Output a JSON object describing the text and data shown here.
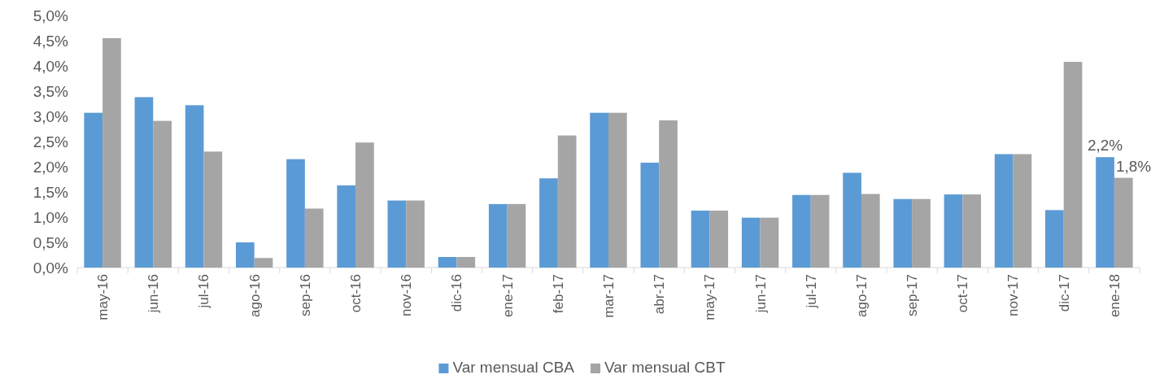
{
  "chart_data": {
    "type": "bar",
    "categories": [
      "may-16",
      "jun-16",
      "jul-16",
      "ago-16",
      "sep-16",
      "oct-16",
      "nov-16",
      "dic-16",
      "ene-17",
      "feb-17",
      "mar-17",
      "abr-17",
      "may-17",
      "jun-17",
      "jul-17",
      "ago-17",
      "sep-17",
      "oct-17",
      "nov-17",
      "dic-17",
      "ene-18"
    ],
    "series": [
      {
        "name": "Var mensual CBA",
        "color": "#5b9bd5",
        "values": [
          3.07,
          3.38,
          3.22,
          0.5,
          2.15,
          1.63,
          1.33,
          0.21,
          1.26,
          1.77,
          3.07,
          2.08,
          1.13,
          0.99,
          1.44,
          1.88,
          1.36,
          1.45,
          2.25,
          1.14,
          2.19
        ],
        "value_labels": [
          null,
          null,
          null,
          null,
          null,
          null,
          null,
          null,
          null,
          null,
          null,
          null,
          null,
          null,
          null,
          null,
          null,
          null,
          null,
          null,
          "2,2%"
        ]
      },
      {
        "name": "Var mensual CBT",
        "color": "#a5a5a5",
        "values": [
          4.55,
          2.91,
          2.3,
          0.19,
          1.17,
          2.48,
          1.33,
          0.21,
          1.26,
          2.62,
          3.07,
          2.92,
          1.13,
          0.99,
          1.44,
          1.46,
          1.36,
          1.45,
          2.25,
          4.08,
          1.78
        ],
        "value_labels": [
          null,
          null,
          null,
          null,
          null,
          null,
          null,
          null,
          null,
          null,
          null,
          null,
          null,
          null,
          null,
          null,
          null,
          null,
          null,
          null,
          "1,8%"
        ]
      }
    ],
    "ylim": [
      0,
      5
    ],
    "yticks": [
      {
        "value": 0,
        "label": "0,0%"
      },
      {
        "value": 0.5,
        "label": "0,5%"
      },
      {
        "value": 1,
        "label": "1,0%"
      },
      {
        "value": 1.5,
        "label": "1,5%"
      },
      {
        "value": 2,
        "label": "2,0%"
      },
      {
        "value": 2.5,
        "label": "2,5%"
      },
      {
        "value": 3,
        "label": "3,0%"
      },
      {
        "value": 3.5,
        "label": "3,5%"
      },
      {
        "value": 4,
        "label": "4,0%"
      },
      {
        "value": 4.5,
        "label": "4,5%"
      },
      {
        "value": 5,
        "label": "5,0%"
      }
    ],
    "grid": false,
    "legend": "bottom"
  }
}
